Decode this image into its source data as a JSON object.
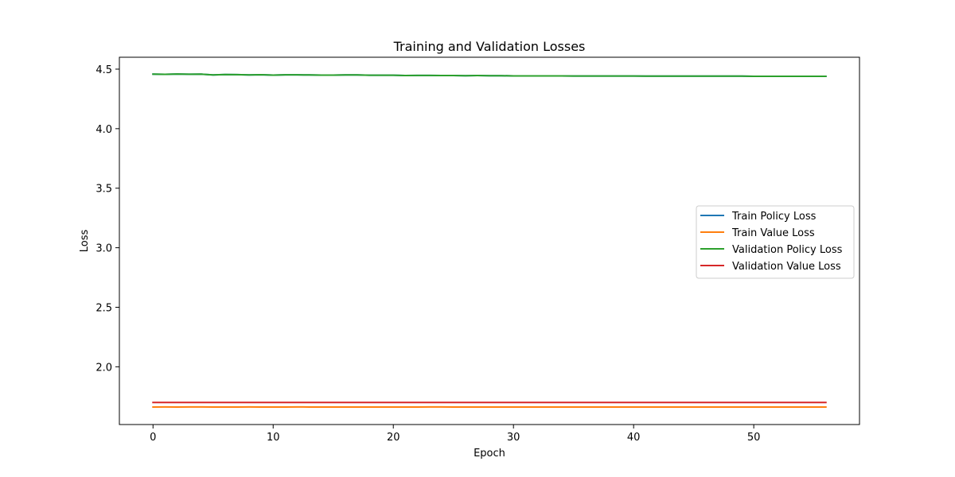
{
  "chart_data": {
    "type": "line",
    "title": "Training and Validation Losses",
    "xlabel": "Epoch",
    "ylabel": "Loss",
    "xlim": [
      -2.8,
      58.8
    ],
    "ylim": [
      1.515,
      4.6
    ],
    "x_ticks": [
      0,
      10,
      20,
      30,
      40,
      50
    ],
    "y_ticks": [
      2.0,
      2.5,
      3.0,
      3.5,
      4.0,
      4.5
    ],
    "y_tick_labels": [
      "2.0",
      "2.5",
      "3.0",
      "3.5",
      "4.0",
      "4.5"
    ],
    "grid": false,
    "legend_position": "center-right",
    "x_start": 0,
    "x_end": 56,
    "series": [
      {
        "name": "Train Policy Loss",
        "color": "#1f77b4",
        "values": [
          4.458,
          4.456,
          4.459,
          4.457,
          4.458,
          4.451,
          4.455,
          4.454,
          4.451,
          4.453,
          4.45,
          4.452,
          4.452,
          4.451,
          4.45,
          4.45,
          4.451,
          4.451,
          4.449,
          4.449,
          4.449,
          4.446,
          4.447,
          4.447,
          4.446,
          4.446,
          4.445,
          4.446,
          4.445,
          4.445,
          4.443,
          4.443,
          4.443,
          4.443,
          4.443,
          4.442,
          4.442,
          4.442,
          4.442,
          4.442,
          4.442,
          4.441,
          4.441,
          4.441,
          4.441,
          4.441,
          4.441,
          4.441,
          4.441,
          4.441,
          4.44,
          4.44,
          4.44,
          4.44,
          4.44,
          4.44,
          4.44
        ]
      },
      {
        "name": "Train Value Loss",
        "color": "#ff7f0e",
        "values": [
          1.662,
          1.663,
          1.662,
          1.663,
          1.663,
          1.662,
          1.662,
          1.662,
          1.663,
          1.662,
          1.662,
          1.662,
          1.663,
          1.662,
          1.662,
          1.662,
          1.662,
          1.662,
          1.662,
          1.662,
          1.662,
          1.662,
          1.662,
          1.663,
          1.663,
          1.662,
          1.662,
          1.662,
          1.662,
          1.662,
          1.662,
          1.662,
          1.662,
          1.662,
          1.662,
          1.662,
          1.662,
          1.662,
          1.662,
          1.662,
          1.662,
          1.662,
          1.662,
          1.662,
          1.662,
          1.662,
          1.662,
          1.662,
          1.662,
          1.662,
          1.662,
          1.662,
          1.662,
          1.662,
          1.662,
          1.662,
          1.662
        ]
      },
      {
        "name": "Validation Policy Loss",
        "color": "#2ca02c",
        "values": [
          4.458,
          4.456,
          4.459,
          4.457,
          4.458,
          4.451,
          4.455,
          4.454,
          4.451,
          4.453,
          4.45,
          4.452,
          4.452,
          4.451,
          4.45,
          4.45,
          4.451,
          4.451,
          4.449,
          4.449,
          4.449,
          4.446,
          4.447,
          4.447,
          4.446,
          4.446,
          4.445,
          4.446,
          4.445,
          4.445,
          4.443,
          4.443,
          4.443,
          4.443,
          4.443,
          4.442,
          4.442,
          4.442,
          4.442,
          4.442,
          4.442,
          4.441,
          4.441,
          4.441,
          4.441,
          4.441,
          4.441,
          4.441,
          4.441,
          4.441,
          4.44,
          4.44,
          4.44,
          4.44,
          4.44,
          4.44,
          4.44
        ]
      },
      {
        "name": "Validation Value Loss",
        "color": "#d62728",
        "values": [
          1.7,
          1.7,
          1.7,
          1.7,
          1.7,
          1.7,
          1.7,
          1.7,
          1.7,
          1.7,
          1.7,
          1.7,
          1.7,
          1.7,
          1.7,
          1.7,
          1.7,
          1.7,
          1.7,
          1.7,
          1.7,
          1.7,
          1.7,
          1.7,
          1.7,
          1.7,
          1.7,
          1.7,
          1.7,
          1.7,
          1.7,
          1.7,
          1.7,
          1.7,
          1.7,
          1.7,
          1.7,
          1.7,
          1.7,
          1.7,
          1.7,
          1.7,
          1.7,
          1.7,
          1.7,
          1.7,
          1.7,
          1.7,
          1.7,
          1.7,
          1.7,
          1.7,
          1.7,
          1.7,
          1.7,
          1.7,
          1.7
        ]
      }
    ]
  }
}
